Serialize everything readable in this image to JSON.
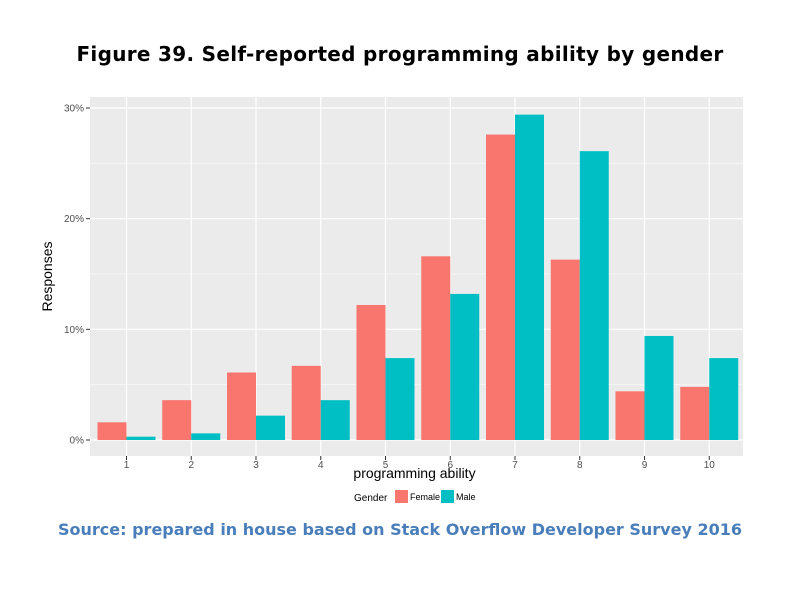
{
  "figure": {
    "title": "Figure 39. Self-reported programming ability by gender",
    "source": "Source: prepared in house based on Stack Overflow Developer Survey 2016"
  },
  "chart_data": {
    "type": "bar",
    "title": "",
    "xlabel": "programming ability",
    "ylabel": "Responses",
    "categories": [
      "1",
      "2",
      "3",
      "4",
      "5",
      "6",
      "7",
      "8",
      "9",
      "10"
    ],
    "series": [
      {
        "name": "Female",
        "color": "#F8766D",
        "values": [
          1.6,
          3.6,
          6.1,
          6.7,
          12.2,
          16.6,
          27.6,
          16.3,
          4.4,
          4.8
        ]
      },
      {
        "name": "Male",
        "color": "#00BFC4",
        "values": [
          0.3,
          0.6,
          2.2,
          3.6,
          7.4,
          13.2,
          29.4,
          26.1,
          9.4,
          7.4
        ]
      }
    ],
    "ylim": [
      0,
      31
    ],
    "yticks": [
      0,
      10,
      20,
      30
    ],
    "ytick_labels": [
      "0%",
      "10%",
      "20%",
      "30%"
    ],
    "legend": {
      "title": "Gender",
      "position": "bottom"
    },
    "grid": true,
    "panel_color": "#EBEBEB"
  }
}
